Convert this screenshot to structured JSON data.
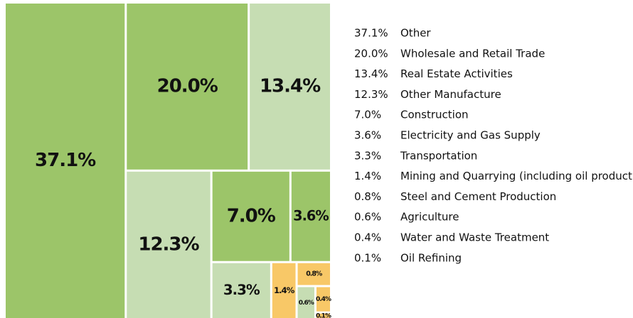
{
  "chart_data": {
    "type": "treemap",
    "categories": [
      "Other",
      "Wholesale and Retail Trade",
      "Real Estate Activities",
      "Other Manufacture",
      "Construction",
      "Electricity and Gas Supply",
      "Transportation",
      "Mining and Quarrying (including oil production)",
      "Steel and Cement Production",
      "Agriculture",
      "Water and Waste Treatment",
      "Oil Refining"
    ],
    "values": [
      37.1,
      20.0,
      13.4,
      12.3,
      7.0,
      3.6,
      3.3,
      1.4,
      0.8,
      0.6,
      0.4,
      0.1
    ],
    "value_labels": [
      "37.1%",
      "20.0%",
      "13.4%",
      "12.3%",
      "7.0%",
      "3.6%",
      "3.3%",
      "1.4%",
      "0.8%",
      "0.6%",
      "0.4%",
      "0.1%"
    ],
    "colors": [
      "#9cc569",
      "#9cc569",
      "#c6ddb3",
      "#c6ddb3",
      "#9cc569",
      "#9cc569",
      "#c6ddb3",
      "#f8c867",
      "#f8c867",
      "#c6ddb3",
      "#f8c867",
      "#f8c867"
    ]
  }
}
